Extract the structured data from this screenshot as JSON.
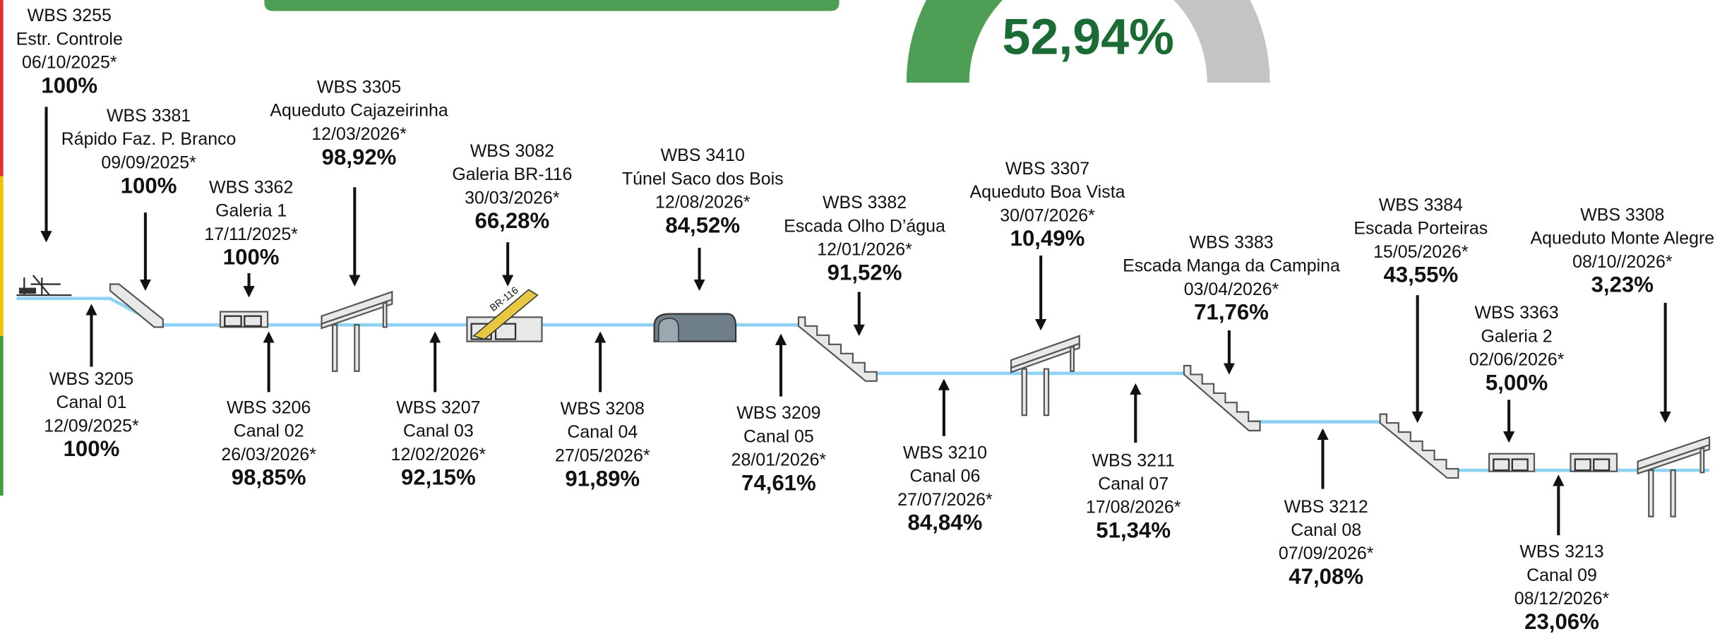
{
  "gauge": {
    "value": "52,94%"
  },
  "top_items": [
    {
      "wbs": "WBS 3255",
      "name": "Estr. Controle",
      "date": "06/10/2025*",
      "percent": "100%"
    },
    {
      "wbs": "WBS 3381",
      "name": "Rápido Faz. P. Branco",
      "date": "09/09/2025*",
      "percent": "100%"
    },
    {
      "wbs": "WBS 3362",
      "name": "Galeria 1",
      "date": "17/11/2025*",
      "percent": "100%"
    },
    {
      "wbs": "WBS 3305",
      "name": "Aqueduto Cajazeirinha",
      "date": "12/03/2026*",
      "percent": "98,92%"
    },
    {
      "wbs": "WBS 3082",
      "name": "Galeria BR-116",
      "date": "30/03/2026*",
      "percent": "66,28%"
    },
    {
      "wbs": "WBS 3410",
      "name": "Túnel Saco dos Bois",
      "date": "12/08/2026*",
      "percent": "84,52%"
    },
    {
      "wbs": "WBS 3382",
      "name": "Escada Olho D’água",
      "date": "12/01/2026*",
      "percent": "91,52%"
    },
    {
      "wbs": "WBS 3307",
      "name": "Aqueduto Boa Vista",
      "date": "30/07/2026*",
      "percent": "10,49%"
    },
    {
      "wbs": "WBS 3383",
      "name": "Escada Manga da Campina",
      "date": "03/04/2026*",
      "percent": "71,76%"
    },
    {
      "wbs": "WBS 3384",
      "name": "Escada Porteiras",
      "date": "15/05/2026*",
      "percent": "43,55%"
    },
    {
      "wbs": "WBS 3363",
      "name": "Galeria 2",
      "date": "02/06/2026*",
      "percent": "5,00%"
    },
    {
      "wbs": "WBS 3308",
      "name": "Aqueduto Monte Alegre",
      "date": "08/10//2026*",
      "percent": "3,23%"
    }
  ],
  "bottom_items": [
    {
      "wbs": "WBS 3205",
      "name": "Canal 01",
      "date": "12/09/2025*",
      "percent": "100%"
    },
    {
      "wbs": "WBS 3206",
      "name": "Canal 02",
      "date": "26/03/2026*",
      "percent": "98,85%"
    },
    {
      "wbs": "WBS 3207",
      "name": "Canal 03",
      "date": "12/02/2026*",
      "percent": "92,15%"
    },
    {
      "wbs": "WBS 3208",
      "name": "Canal 04",
      "date": "27/05/2026*",
      "percent": "91,89%"
    },
    {
      "wbs": "WBS 3209",
      "name": "Canal 05",
      "date": "28/01/2026*",
      "percent": "74,61%"
    },
    {
      "wbs": "WBS 3210",
      "name": "Canal 06",
      "date": "27/07/2026*",
      "percent": "84,84%"
    },
    {
      "wbs": "WBS 3211",
      "name": "Canal 07",
      "date": "17/08/2026*",
      "percent": "51,34%"
    },
    {
      "wbs": "WBS 3212",
      "name": "Canal 08",
      "date": "07/09/2026*",
      "percent": "47,08%"
    },
    {
      "wbs": "WBS 3213",
      "name": "Canal 09",
      "date": "08/12/2026*",
      "percent": "23,06%"
    }
  ],
  "road_label": "BR-116"
}
